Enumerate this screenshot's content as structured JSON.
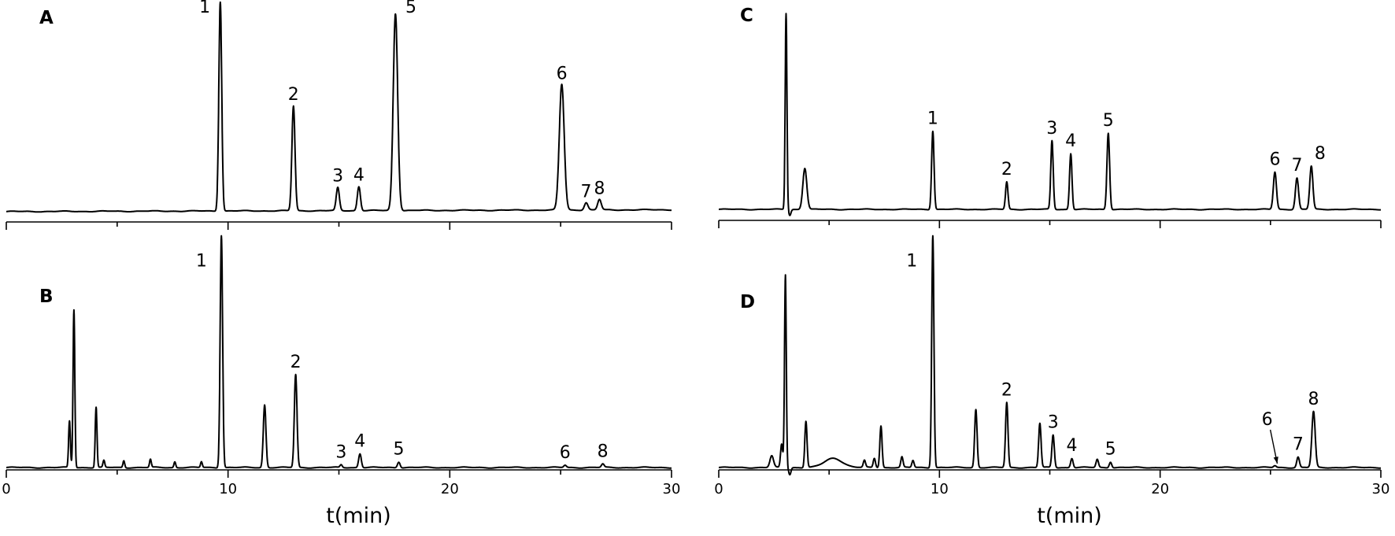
{
  "chart_data": [
    {
      "panel": "A",
      "type": "line",
      "xlim": [
        0,
        30
      ],
      "ylim": [
        0,
        100
      ],
      "xlabel": "",
      "ylabel": "",
      "grid": false,
      "xticks": [],
      "baseline_start": 1.2,
      "baseline_end": 3.5,
      "peaks": [
        {
          "x": 9.65,
          "y": 100,
          "w": 0.065
        },
        {
          "x": 12.95,
          "y": 50,
          "w": 0.07
        },
        {
          "x": 14.95,
          "y": 11,
          "w": 0.07
        },
        {
          "x": 15.9,
          "y": 11.5,
          "w": 0.07
        },
        {
          "x": 17.55,
          "y": 94,
          "w": 0.1
        },
        {
          "x": 25.05,
          "y": 60,
          "w": 0.11
        },
        {
          "x": 26.15,
          "y": 3.5,
          "w": 0.08
        },
        {
          "x": 26.75,
          "y": 5,
          "w": 0.08
        }
      ],
      "labels": [
        {
          "text": "1",
          "x": 9.65,
          "y": 100,
          "dx": -0.7
        },
        {
          "text": "2",
          "x": 12.95,
          "y": 50,
          "dx": 0
        },
        {
          "text": "3",
          "x": 14.95,
          "y": 11,
          "dx": 0
        },
        {
          "text": "4",
          "x": 15.9,
          "y": 11.5,
          "dx": 0
        },
        {
          "text": "5",
          "x": 17.55,
          "y": 94,
          "dx": 0.7
        },
        {
          "text": "6",
          "x": 25.05,
          "y": 60,
          "dx": 0
        },
        {
          "text": "7",
          "x": 26.15,
          "y": 3.5,
          "dx": 0
        },
        {
          "text": "8",
          "x": 26.75,
          "y": 5,
          "dx": 0
        }
      ]
    },
    {
      "panel": "B",
      "type": "line",
      "xlim": [
        0,
        30
      ],
      "ylim": [
        0,
        100
      ],
      "xlabel": "t(min)",
      "ylabel": "",
      "grid": false,
      "xticks": [
        0,
        10,
        20,
        30
      ],
      "baseline_start": 1.0,
      "baseline_end": 1.0,
      "peaks": [
        {
          "x": 2.85,
          "y": 20,
          "w": 0.04
        },
        {
          "x": 3.05,
          "y": 68,
          "w": 0.04
        },
        {
          "x": 4.05,
          "y": 26,
          "w": 0.04
        },
        {
          "x": 4.4,
          "y": 3,
          "w": 0.04
        },
        {
          "x": 5.3,
          "y": 3,
          "w": 0.04
        },
        {
          "x": 6.5,
          "y": 3.5,
          "w": 0.04
        },
        {
          "x": 7.6,
          "y": 2.5,
          "w": 0.04
        },
        {
          "x": 8.8,
          "y": 2.5,
          "w": 0.04
        },
        {
          "x": 9.7,
          "y": 100,
          "w": 0.055
        },
        {
          "x": 11.65,
          "y": 27,
          "w": 0.06
        },
        {
          "x": 13.05,
          "y": 40,
          "w": 0.06
        },
        {
          "x": 15.1,
          "y": 1.2,
          "w": 0.05
        },
        {
          "x": 15.95,
          "y": 6,
          "w": 0.06
        },
        {
          "x": 17.7,
          "y": 2.5,
          "w": 0.06
        },
        {
          "x": 25.2,
          "y": 1,
          "w": 0.06
        },
        {
          "x": 26.9,
          "y": 1.5,
          "w": 0.06
        }
      ],
      "labels": [
        {
          "text": "1",
          "x": 9.7,
          "y": 100,
          "dx": -0.9,
          "dy": -0.45
        },
        {
          "text": "2",
          "x": 13.05,
          "y": 40,
          "dx": 0
        },
        {
          "text": "3",
          "x": 15.1,
          "y": 1.2,
          "dx": 0
        },
        {
          "text": "4",
          "x": 15.95,
          "y": 6,
          "dx": 0
        },
        {
          "text": "5",
          "x": 17.7,
          "y": 2.5,
          "dx": 0
        },
        {
          "text": "6",
          "x": 25.2,
          "y": 1,
          "dx": 0
        },
        {
          "text": "8",
          "x": 26.9,
          "y": 1.5,
          "dx": 0
        }
      ]
    },
    {
      "panel": "C",
      "type": "line",
      "xlim": [
        0,
        30
      ],
      "ylim": [
        0,
        100
      ],
      "xlabel": "",
      "ylabel": "",
      "grid": false,
      "xticks": [],
      "baseline_start": 1.0,
      "baseline_end": 1.0,
      "dip": {
        "x": 3.1,
        "depth": 1.0
      },
      "peaks": [
        {
          "x": 3.05,
          "y": 100,
          "w": 0.04
        },
        {
          "x": 3.9,
          "y": 21,
          "w": 0.09
        },
        {
          "x": 9.7,
          "y": 40,
          "w": 0.055
        },
        {
          "x": 13.05,
          "y": 14,
          "w": 0.055
        },
        {
          "x": 15.1,
          "y": 35,
          "w": 0.055
        },
        {
          "x": 15.95,
          "y": 28.5,
          "w": 0.055
        },
        {
          "x": 17.65,
          "y": 39,
          "w": 0.06
        },
        {
          "x": 25.2,
          "y": 19,
          "w": 0.07
        },
        {
          "x": 26.2,
          "y": 16,
          "w": 0.07
        },
        {
          "x": 26.85,
          "y": 22,
          "w": 0.07
        }
      ],
      "labels": [
        {
          "text": "1",
          "x": 9.7,
          "y": 40,
          "dx": 0
        },
        {
          "text": "2",
          "x": 13.05,
          "y": 14,
          "dx": 0
        },
        {
          "text": "3",
          "x": 15.1,
          "y": 35,
          "dx": 0
        },
        {
          "text": "4",
          "x": 15.95,
          "y": 28.5,
          "dx": 0
        },
        {
          "text": "5",
          "x": 17.65,
          "y": 39,
          "dx": 0
        },
        {
          "text": "6",
          "x": 25.2,
          "y": 19,
          "dx": 0
        },
        {
          "text": "7",
          "x": 26.2,
          "y": 16,
          "dx": 0
        },
        {
          "text": "8",
          "x": 26.85,
          "y": 22,
          "dx": 0.4
        }
      ]
    },
    {
      "panel": "D",
      "type": "line",
      "xlim": [
        0,
        30
      ],
      "ylim": [
        0,
        100
      ],
      "xlabel": "t(min)",
      "ylabel": "",
      "grid": false,
      "xticks": [
        0,
        10,
        20,
        30
      ],
      "baseline_start": 1.0,
      "baseline_end": 1.0,
      "dip": {
        "x": 3.1,
        "depth": 1.0
      },
      "peaks": [
        {
          "x": 2.4,
          "y": 5,
          "w": 0.08
        },
        {
          "x": 2.85,
          "y": 10,
          "w": 0.05
        },
        {
          "x": 3.02,
          "y": 83,
          "w": 0.04
        },
        {
          "x": 3.95,
          "y": 20,
          "w": 0.05
        },
        {
          "x": 5.2,
          "y": 4,
          "w": 0.4
        },
        {
          "x": 6.6,
          "y": 3,
          "w": 0.05
        },
        {
          "x": 7.05,
          "y": 4,
          "w": 0.05
        },
        {
          "x": 7.35,
          "y": 18,
          "w": 0.05
        },
        {
          "x": 8.3,
          "y": 4.5,
          "w": 0.05
        },
        {
          "x": 8.8,
          "y": 3,
          "w": 0.05
        },
        {
          "x": 9.7,
          "y": 100,
          "w": 0.05
        },
        {
          "x": 11.65,
          "y": 25,
          "w": 0.055
        },
        {
          "x": 13.05,
          "y": 28,
          "w": 0.055
        },
        {
          "x": 14.55,
          "y": 19,
          "w": 0.055
        },
        {
          "x": 15.15,
          "y": 14,
          "w": 0.055
        },
        {
          "x": 16.0,
          "y": 4,
          "w": 0.055
        },
        {
          "x": 17.15,
          "y": 3.5,
          "w": 0.055
        },
        {
          "x": 17.75,
          "y": 2.5,
          "w": 0.055
        },
        {
          "x": 25.2,
          "y": 0.8,
          "w": 0.06
        },
        {
          "x": 26.25,
          "y": 4.5,
          "w": 0.06
        },
        {
          "x": 26.95,
          "y": 24,
          "w": 0.075
        }
      ],
      "labels": [
        {
          "text": "1",
          "x": 9.7,
          "y": 100,
          "dx": -0.95,
          "dy": -0.45
        },
        {
          "text": "2",
          "x": 13.05,
          "y": 28,
          "dx": 0
        },
        {
          "text": "3",
          "x": 15.15,
          "y": 14,
          "dx": 0
        },
        {
          "text": "4",
          "x": 16.0,
          "y": 4,
          "dx": 0
        },
        {
          "text": "5",
          "x": 17.75,
          "y": 2.5,
          "dx": 0
        },
        {
          "text": "6",
          "x": 25.2,
          "y": 0.8,
          "dx": -0.35,
          "dy": -0.44,
          "arrow": true
        },
        {
          "text": "7",
          "x": 26.25,
          "y": 4.5,
          "dx": 0
        },
        {
          "text": "8",
          "x": 26.95,
          "y": 24,
          "dx": 0
        }
      ]
    }
  ]
}
